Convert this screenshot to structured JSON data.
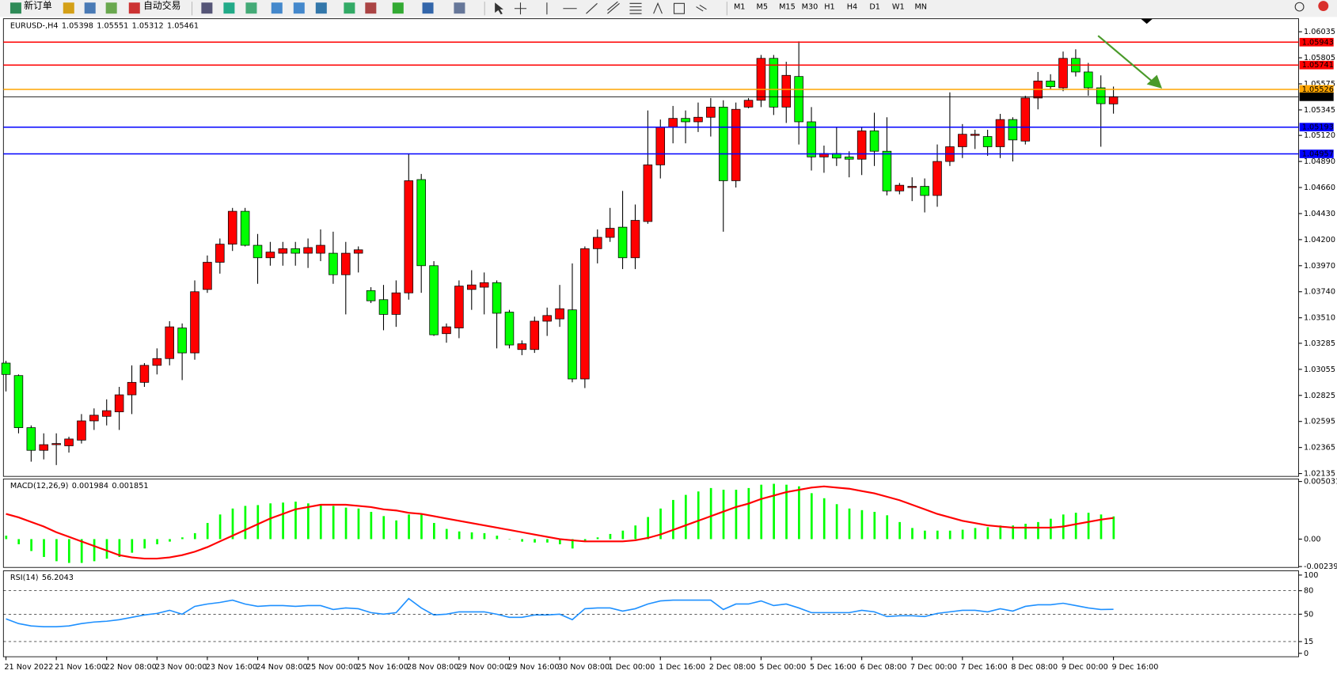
{
  "toolbar": {
    "new_order": "新订单",
    "auto_trading": "自动交易",
    "timeframes": [
      "M1",
      "M5",
      "M15",
      "M30",
      "H1",
      "H4",
      "D1",
      "W1",
      "MN"
    ]
  },
  "chart_data": [
    {
      "type": "candlestick",
      "title": "EURUSD-,H4",
      "categories": [
        "21 Nov 2022",
        null,
        null,
        null,
        "21 Nov 16:00",
        null,
        null,
        null,
        "22 Nov 08:00",
        null,
        null,
        null,
        "23 Nov 00:00",
        null,
        null,
        null,
        "23 Nov 16:00",
        null,
        null,
        null,
        "24 Nov 08:00",
        null,
        null,
        null,
        "25 Nov 00:00",
        null,
        null,
        null,
        "25 Nov 16:00",
        null,
        null,
        null,
        "28 Nov 08:00",
        null,
        null,
        null,
        "29 Nov 00:00",
        null,
        null,
        null,
        "29 Nov 16:00",
        null,
        null,
        null,
        "30 Nov 08:00",
        null,
        null,
        null,
        "1 Dec 00:00",
        null,
        null,
        null,
        "1 Dec 16:00",
        null,
        null,
        null,
        "2 Dec 08:00",
        null,
        null,
        null,
        "5 Dec 00:00",
        null,
        null,
        null,
        "5 Dec 16:00",
        null,
        null,
        null,
        "6 Dec 08:00",
        null,
        null,
        null,
        "7 Dec 00:00",
        null,
        null,
        null,
        "7 Dec 16:00",
        null,
        null,
        null,
        "8 Dec 08:00",
        null,
        null,
        null,
        "9 Dec 00:00",
        null,
        null,
        null,
        "9 Dec 16:00"
      ],
      "open": [
        1.0311,
        1.03,
        1.0254,
        1.0234,
        1.0239,
        1.0238,
        1.0243,
        1.026,
        1.0264,
        1.0268,
        1.0283,
        1.0294,
        1.0309,
        1.0315,
        1.0342,
        1.032,
        1.0376,
        1.04,
        1.0416,
        1.0445,
        1.0415,
        1.0404,
        1.0408,
        1.0412,
        1.0408,
        1.0408,
        1.0408,
        1.0389,
        1.0408,
        1.0375,
        1.0367,
        1.0354,
        1.0373,
        1.0473,
        1.0397,
        1.0337,
        1.0342,
        1.0376,
        1.0378,
        1.0382,
        1.0356,
        1.0323,
        1.0323,
        1.0348,
        1.035,
        1.0358,
        1.0297,
        1.0412,
        1.0422,
        1.0431,
        1.0404,
        1.0436,
        1.0486,
        1.0519,
        1.0527,
        1.0524,
        1.0528,
        1.0537,
        1.0472,
        1.0537,
        1.0543,
        1.058,
        1.0537,
        1.0564,
        1.0524,
        1.0493,
        1.0496,
        1.0493,
        1.0491,
        1.0516,
        1.0498,
        1.0463,
        1.0466,
        1.0467,
        1.0459,
        1.0489,
        1.0502,
        1.0512,
        1.0511,
        1.0502,
        1.0526,
        1.0507,
        1.0545,
        1.056,
        1.0554,
        1.058,
        1.0568,
        1.0554,
        1.05398
      ],
      "high": [
        1.0313,
        1.0301,
        1.0256,
        1.0249,
        1.0249,
        1.0246,
        1.0266,
        1.0271,
        1.0279,
        1.029,
        1.0309,
        1.0311,
        1.0324,
        1.0348,
        1.0346,
        1.0384,
        1.0406,
        1.0421,
        1.0448,
        1.0448,
        1.0425,
        1.0418,
        1.0418,
        1.0418,
        1.0421,
        1.0429,
        1.0427,
        1.0418,
        1.0414,
        1.0378,
        1.038,
        1.0384,
        1.0496,
        1.0478,
        1.0401,
        1.0346,
        1.0384,
        1.0393,
        1.0391,
        1.0384,
        1.0358,
        1.0331,
        1.0352,
        1.036,
        1.038,
        1.0399,
        1.0414,
        1.0429,
        1.0448,
        1.0463,
        1.0451,
        1.0534,
        1.0526,
        1.0538,
        1.0534,
        1.0541,
        1.0545,
        1.0543,
        1.0541,
        1.0545,
        1.0583,
        1.0583,
        1.0577,
        1.0595,
        1.0537,
        1.0503,
        1.0519,
        1.0498,
        1.0519,
        1.0532,
        1.0528,
        1.047,
        1.0475,
        1.0474,
        1.0504,
        1.055,
        1.0522,
        1.0517,
        1.0517,
        1.0531,
        1.0528,
        1.0547,
        1.0568,
        1.0566,
        1.0586,
        1.0588,
        1.0576,
        1.0565,
        1.05551
      ],
      "low": [
        1.0286,
        1.0249,
        1.0224,
        1.0226,
        1.0221,
        1.0232,
        1.024,
        1.0252,
        1.0256,
        1.0252,
        1.0266,
        1.029,
        1.0301,
        1.0309,
        1.0296,
        1.0314,
        1.0373,
        1.039,
        1.041,
        1.0414,
        1.0381,
        1.0397,
        1.0397,
        1.0397,
        1.0395,
        1.0401,
        1.0381,
        1.0354,
        1.0391,
        1.0364,
        1.034,
        1.0343,
        1.0367,
        1.0373,
        1.0335,
        1.0329,
        1.0333,
        1.0358,
        1.0354,
        1.0324,
        1.0324,
        1.0318,
        1.032,
        1.0335,
        1.0343,
        1.0294,
        1.0289,
        1.0399,
        1.0418,
        1.0394,
        1.0394,
        1.0434,
        1.0474,
        1.0505,
        1.0505,
        1.0515,
        1.0511,
        1.0427,
        1.0466,
        1.0536,
        1.0537,
        1.053,
        1.0523,
        1.0504,
        1.0481,
        1.0479,
        1.0485,
        1.0475,
        1.0477,
        1.0485,
        1.0459,
        1.046,
        1.0454,
        1.0444,
        1.0449,
        1.0485,
        1.0492,
        1.05,
        1.0494,
        1.0492,
        1.0489,
        1.0504,
        1.0535,
        1.0553,
        1.0551,
        1.0564,
        1.0547,
        1.0502,
        1.05312
      ],
      "close": [
        1.0301,
        1.0254,
        1.0234,
        1.0239,
        1.024,
        1.0244,
        1.026,
        1.0265,
        1.0269,
        1.0283,
        1.0294,
        1.0309,
        1.0315,
        1.0343,
        1.032,
        1.0374,
        1.04,
        1.0416,
        1.0445,
        1.0415,
        1.0404,
        1.0409,
        1.0412,
        1.0408,
        1.0413,
        1.0415,
        1.0389,
        1.0408,
        1.0411,
        1.0366,
        1.0354,
        1.0373,
        1.0472,
        1.0397,
        1.0336,
        1.0343,
        1.0379,
        1.038,
        1.0382,
        1.0355,
        1.0327,
        1.0328,
        1.0348,
        1.0353,
        1.0359,
        1.0297,
        1.0412,
        1.0422,
        1.043,
        1.0404,
        1.0437,
        1.0486,
        1.0519,
        1.0527,
        1.0524,
        1.0528,
        1.0537,
        1.0472,
        1.0535,
        1.0543,
        1.058,
        1.0537,
        1.0565,
        1.0524,
        1.0493,
        1.0496,
        1.0492,
        1.0491,
        1.0516,
        1.0498,
        1.0463,
        1.0468,
        1.0467,
        1.0459,
        1.0489,
        1.0502,
        1.0513,
        1.0513,
        1.0502,
        1.0526,
        1.0508,
        1.0545,
        1.056,
        1.0555,
        1.058,
        1.0568,
        1.0554,
        1.054,
        1.05461
      ],
      "up_color": "#ff0000",
      "down_color": "#00ff00",
      "ylim": [
        1.0211,
        1.0615
      ],
      "yticks": [
        1.06035,
        1.05805,
        1.05575,
        1.05345,
        {
          "value": 1.0512,
          "label": "1.05120"
        },
        {
          "value": 1.0489,
          "label": "1.04890"
        },
        {
          "value": 1.0466,
          "label": "1.04660"
        },
        {
          "value": 1.0443,
          "label": "1.04430"
        },
        {
          "value": 1.042,
          "label": "1.04200"
        },
        {
          "value": 1.0397,
          "label": "1.03970"
        },
        {
          "value": 1.0374,
          "label": "1.03740"
        },
        {
          "value": 1.0351,
          "label": "1.03510"
        },
        1.03285,
        1.03055,
        1.02825,
        1.02595,
        1.02365,
        1.02135
      ],
      "hlines": [
        {
          "value": 1.05943,
          "color": "#ff0000"
        },
        {
          "value": 1.05741,
          "color": "#ff0000"
        },
        {
          "value": 1.05526,
          "color": "#ffa500"
        },
        {
          "value": 1.05461,
          "color": "#000000"
        },
        {
          "value": 1.05193,
          "color": "#0000ff"
        },
        {
          "value": 1.04957,
          "color": "#0000ff"
        }
      ]
    },
    {
      "type": "bar",
      "title": "MACD(12,26,9)",
      "values": [
        0.0003,
        -0.00045,
        -0.00104,
        -0.00156,
        -0.00193,
        -0.00208,
        -0.00208,
        -0.00193,
        -0.00171,
        -0.00156,
        -0.00119,
        -0.00082,
        -0.00045,
        -0.00022,
        0.00015,
        0.00052,
        0.00141,
        0.00215,
        0.00267,
        0.0029,
        0.00297,
        0.00312,
        0.00319,
        0.00327,
        0.00312,
        0.00305,
        0.0029,
        0.00275,
        0.00267,
        0.00238,
        0.00201,
        0.00163,
        0.00215,
        0.00215,
        0.00141,
        0.00089,
        0.00067,
        0.00059,
        0.00052,
        0.0003,
        3e-05,
        -0.00022,
        -0.0003,
        -0.0003,
        -0.00045,
        -0.00082,
        -0.00015,
        0.00015,
        0.00045,
        0.00074,
        0.00119,
        0.00193,
        0.00267,
        0.00342,
        0.00386,
        0.00416,
        0.00446,
        0.00431,
        0.00431,
        0.00446,
        0.00475,
        0.00483,
        0.00475,
        0.00461,
        0.00401,
        0.00357,
        0.00305,
        0.00267,
        0.00253,
        0.00238,
        0.00208,
        0.00149,
        0.00097,
        0.00074,
        0.00074,
        0.00074,
        0.00082,
        0.00097,
        0.00104,
        0.00119,
        0.00119,
        0.00134,
        0.00149,
        0.00178,
        0.00215,
        0.0023,
        0.0023,
        0.00215,
        0.001984
      ],
      "color": "#00ff00",
      "line_values": [
        0.0022,
        0.0019,
        0.0015,
        0.0011,
        0.0006,
        0.0002,
        -0.0002,
        -0.0006,
        -0.001,
        -0.0014,
        -0.0016,
        -0.0017,
        -0.0017,
        -0.0016,
        -0.0014,
        -0.0011,
        -0.0007,
        -0.0002,
        0.0003,
        0.0008,
        0.0013,
        0.0018,
        0.0022,
        0.0026,
        0.0028,
        0.003,
        0.003,
        0.003,
        0.0029,
        0.0028,
        0.0026,
        0.0025,
        0.0023,
        0.0022,
        0.002,
        0.0018,
        0.0016,
        0.0014,
        0.0012,
        0.001,
        0.0008,
        0.0006,
        0.0004,
        0.0002,
        0,
        -0.0001,
        -0.0002,
        -0.0002,
        -0.0002,
        -0.0002,
        -0.0001,
        0.0001,
        0.0004,
        0.0008,
        0.0012,
        0.0016,
        0.002,
        0.0024,
        0.0028,
        0.0031,
        0.0035,
        0.0038,
        0.0041,
        0.0043,
        0.0045,
        0.0046,
        0.0045,
        0.0044,
        0.0042,
        0.004,
        0.0037,
        0.0034,
        0.003,
        0.0026,
        0.0022,
        0.0019,
        0.0016,
        0.0014,
        0.0012,
        0.0011,
        0.001,
        0.001,
        0.001,
        0.001,
        0.0011,
        0.0013,
        0.0015,
        0.0017,
        0.001851
      ],
      "line_color": "#ff0000",
      "ylim": [
        -0.002397,
        0.005031
      ],
      "yticks": [
        0.005031,
        {
          "value": 0,
          "label": "0.00"
        },
        -0.002397
      ]
    },
    {
      "type": "line",
      "title": "RSI(14)",
      "values": [
        44,
        38,
        35,
        34,
        34,
        35,
        38,
        40,
        41,
        43,
        46,
        49,
        51,
        55,
        50,
        60,
        63,
        65,
        68,
        63,
        60,
        61,
        61,
        60,
        61,
        61,
        56,
        58,
        57,
        52,
        50,
        52,
        70,
        58,
        49,
        50,
        53,
        53,
        53,
        50,
        46,
        46,
        49,
        49,
        50,
        43,
        57,
        58,
        58,
        54,
        57,
        63,
        67,
        68,
        68,
        68,
        68,
        56,
        63,
        63,
        67,
        61,
        63,
        58,
        52,
        52,
        52,
        52,
        55,
        53,
        47,
        48,
        48,
        47,
        51,
        53,
        55,
        55,
        53,
        57,
        54,
        60,
        62,
        62,
        64,
        61,
        58,
        56,
        56.2043
      ],
      "color": "#1e90ff",
      "ylim": [
        0,
        100
      ],
      "yticks": [
        100,
        80,
        50,
        15,
        0
      ]
    }
  ]
}
